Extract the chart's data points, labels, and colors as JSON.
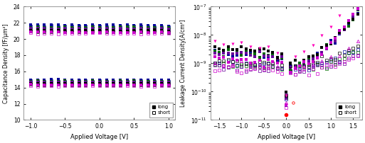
{
  "left": {
    "xlabel": "Applied Voltage [V]",
    "ylabel": "Capacitance Density [fF/μm²]",
    "xlim": [
      -1.1,
      1.1
    ],
    "ylim": [
      10,
      24
    ],
    "yticks": [
      10,
      12,
      14,
      16,
      18,
      20,
      22,
      24
    ],
    "xticks": [
      -1.0,
      -0.5,
      0.0,
      0.5,
      1.0
    ],
    "upper_long": [
      21.7,
      21.45,
      21.25,
      21.05,
      20.85
    ],
    "upper_short": [
      21.55,
      21.3,
      21.1,
      20.9,
      20.7
    ],
    "lower_long": [
      14.95,
      14.8,
      14.65,
      14.5,
      14.35
    ],
    "lower_short": [
      14.8,
      14.65,
      14.5,
      14.35,
      14.2
    ]
  },
  "right": {
    "xlabel": "Applied Voltage [V]",
    "ylabel": "Leakage Current Density[A/cm²]",
    "xlim": [
      -1.7,
      1.7
    ],
    "ylim_log": [
      -11,
      -7
    ],
    "xticks": [
      -1.5,
      -1.0,
      -0.5,
      0.0,
      0.5,
      1.0,
      1.5
    ]
  },
  "colors": [
    "#000099",
    "#006600",
    "#660099",
    "#000000",
    "#cc00cc"
  ],
  "legend_long": "long",
  "legend_short": "short",
  "bg_color": "#ffffff",
  "fig_bg": "#ffffff"
}
